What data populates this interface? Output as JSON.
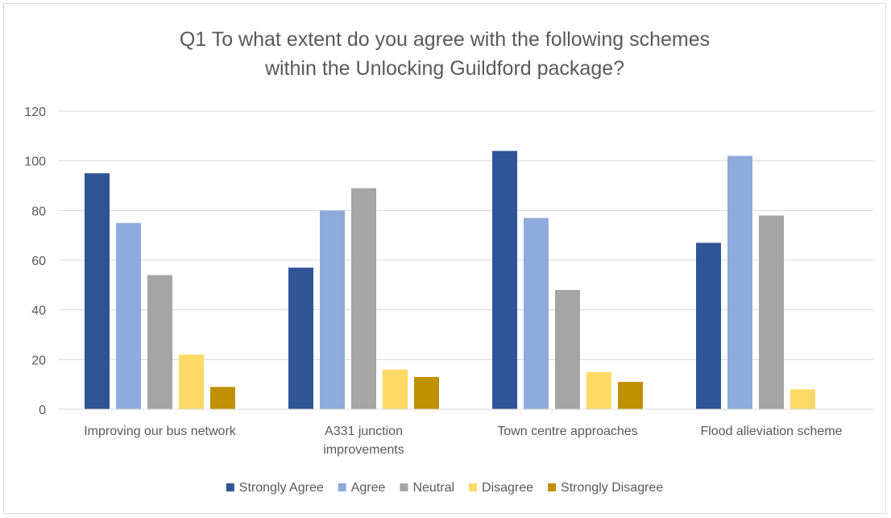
{
  "chart_data": {
    "type": "bar",
    "title": [
      "Q1 To what extent do you agree with the following schemes",
      "within the Unlocking Guildford package?"
    ],
    "categories": [
      [
        "Improving our bus network"
      ],
      [
        "A331 junction",
        "improvements"
      ],
      [
        "Town centre approaches"
      ],
      [
        "Flood alleviation scheme"
      ]
    ],
    "series": [
      {
        "name": "Strongly Agree",
        "color": "#2f5597",
        "values": [
          95,
          57,
          104,
          67
        ]
      },
      {
        "name": "Agree",
        "color": "#8faadc",
        "values": [
          75,
          80,
          77,
          102
        ]
      },
      {
        "name": "Neutral",
        "color": "#a5a5a5",
        "values": [
          54,
          89,
          48,
          78
        ]
      },
      {
        "name": "Disagree",
        "color": "#ffd966",
        "values": [
          22,
          16,
          15,
          8
        ]
      },
      {
        "name": "Strongly Disagree",
        "color": "#bf9000",
        "values": [
          9,
          13,
          11,
          0
        ]
      }
    ],
    "ylim": [
      0,
      120
    ],
    "yticks": [
      0,
      20,
      40,
      60,
      80,
      100,
      120
    ],
    "grid": true,
    "legend": "bottom"
  }
}
